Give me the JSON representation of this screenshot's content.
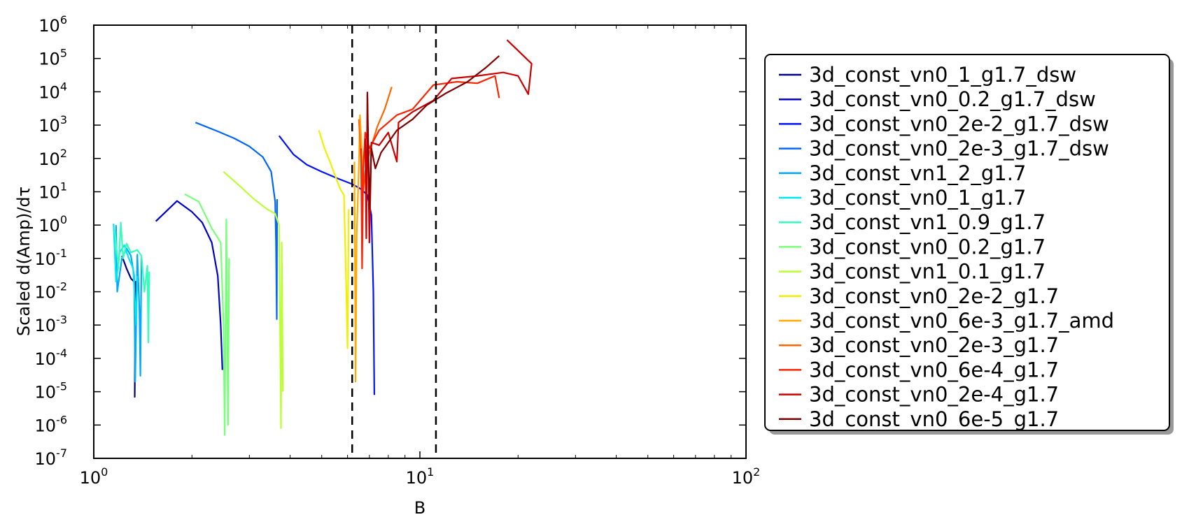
{
  "chart_data": {
    "type": "line",
    "title": "",
    "xlabel": "B",
    "ylabel": "Scaled d(Amp)/dτ",
    "xscale": "log",
    "yscale": "log",
    "xlim": [
      1,
      100
    ],
    "ylim": [
      1e-07,
      1000000.0
    ],
    "x_ticks": [
      {
        "value": 1,
        "base": "10",
        "exp": "0"
      },
      {
        "value": 10,
        "base": "10",
        "exp": "1"
      },
      {
        "value": 100,
        "base": "10",
        "exp": "2"
      }
    ],
    "y_ticks": [
      {
        "value": 1000000.0,
        "base": "10",
        "exp": "6"
      },
      {
        "value": 100000.0,
        "base": "10",
        "exp": "5"
      },
      {
        "value": 10000.0,
        "base": "10",
        "exp": "4"
      },
      {
        "value": 1000.0,
        "base": "10",
        "exp": "3"
      },
      {
        "value": 100.0,
        "base": "10",
        "exp": "2"
      },
      {
        "value": 10.0,
        "base": "10",
        "exp": "1"
      },
      {
        "value": 1.0,
        "base": "10",
        "exp": "0"
      },
      {
        "value": 0.1,
        "base": "10",
        "exp": "-1"
      },
      {
        "value": 0.01,
        "base": "10",
        "exp": "-2"
      },
      {
        "value": 0.001,
        "base": "10",
        "exp": "-3"
      },
      {
        "value": 0.0001,
        "base": "10",
        "exp": "-4"
      },
      {
        "value": 1e-05,
        "base": "10",
        "exp": "-5"
      },
      {
        "value": 1e-06,
        "base": "10",
        "exp": "-6"
      },
      {
        "value": 1e-07,
        "base": "10",
        "exp": "-7"
      }
    ],
    "vlines": [
      6.2,
      11.2
    ],
    "grid": false,
    "legend_position": "outside-right",
    "series": [
      {
        "name": "3d_const_vn0_1_g1.7_dsw",
        "color": "#00007f",
        "points": [
          [
            1.22,
            0.12
          ],
          [
            1.26,
            0.05
          ],
          [
            1.3,
            0.025
          ],
          [
            1.33,
            0.02
          ],
          [
            1.34,
            0.004
          ],
          [
            1.335,
            7e-06
          ],
          [
            1.345,
            0.02
          ],
          [
            1.35,
            0.001
          ]
        ]
      },
      {
        "name": "3d_const_vn0_0.2_g1.7_dsw",
        "color": "#0000cc",
        "points": [
          [
            1.55,
            1.3
          ],
          [
            1.8,
            5.3
          ],
          [
            2.0,
            2.5
          ],
          [
            2.15,
            1.2
          ],
          [
            2.3,
            0.3
          ],
          [
            2.4,
            0.03
          ],
          [
            2.45,
            0.001
          ],
          [
            2.48,
            4.5e-05
          ]
        ]
      },
      {
        "name": "3d_const_vn0_2e-2_g1.7_dsw",
        "color": "#0011ff",
        "points": [
          [
            3.7,
            480
          ],
          [
            4.1,
            130
          ],
          [
            4.5,
            65
          ],
          [
            5.0,
            40
          ],
          [
            5.6,
            25
          ],
          [
            6.2,
            17
          ],
          [
            6.6,
            12
          ],
          [
            6.9,
            8
          ],
          [
            7.1,
            2
          ],
          [
            7.2,
            0.01
          ],
          [
            7.25,
            8e-06
          ]
        ]
      },
      {
        "name": "3d_const_vn0_2e-3_g1.7_dsw",
        "color": "#0066ff",
        "points": [
          [
            2.05,
            1200
          ],
          [
            2.4,
            650
          ],
          [
            2.7,
            400
          ],
          [
            3.0,
            230
          ],
          [
            3.3,
            110
          ],
          [
            3.5,
            40
          ],
          [
            3.6,
            5
          ],
          [
            3.62,
            0.3
          ],
          [
            3.64,
            0.0015
          ],
          [
            3.65,
            6
          ]
        ]
      },
      {
        "name": "3d_const_vn1_2_g1.7",
        "color": "#00aaff",
        "points": [
          [
            1.17,
            1.0
          ],
          [
            1.18,
            0.01
          ],
          [
            1.22,
            0.1
          ],
          [
            1.26,
            0.2
          ],
          [
            1.3,
            0.12
          ],
          [
            1.33,
            0.03
          ],
          [
            1.34,
            2e-05
          ],
          [
            1.36,
            0.13
          ],
          [
            1.38,
            0.003
          ],
          [
            1.39,
            3e-05
          ],
          [
            1.4,
            0.1
          ]
        ]
      },
      {
        "name": "3d_const_vn0_1_g1.7",
        "color": "#00e5f0",
        "points": [
          [
            1.15,
            1.1
          ],
          [
            1.17,
            0.02
          ],
          [
            1.2,
            0.15
          ],
          [
            1.24,
            0.25
          ],
          [
            1.28,
            0.1
          ],
          [
            1.32,
            0.05
          ],
          [
            1.35,
            0.001
          ],
          [
            1.36,
            0.03
          ]
        ]
      },
      {
        "name": "3d_const_vn1_0.9_g1.7",
        "color": "#33ffbb",
        "points": [
          [
            1.16,
            0.7
          ],
          [
            1.19,
            0.05
          ],
          [
            1.21,
            1.2
          ],
          [
            1.23,
            0.1
          ],
          [
            1.26,
            0.28
          ],
          [
            1.3,
            0.15
          ],
          [
            1.36,
            0.18
          ],
          [
            1.4,
            0.12
          ],
          [
            1.43,
            0.01
          ],
          [
            1.46,
            0.06
          ],
          [
            1.47,
            0.0003
          ],
          [
            1.48,
            0.04
          ]
        ]
      },
      {
        "name": "3d_const_vn0_0.2_g1.7",
        "color": "#77ff77",
        "points": [
          [
            1.9,
            8.5
          ],
          [
            2.1,
            5
          ],
          [
            2.3,
            0.8
          ],
          [
            2.45,
            0.3
          ],
          [
            2.5,
            0.001
          ],
          [
            2.52,
            5e-07
          ],
          [
            2.55,
            1.5
          ],
          [
            2.58,
            1e-06
          ],
          [
            2.6,
            0.1
          ]
        ]
      },
      {
        "name": "3d_const_vn1_0.1_g1.7",
        "color": "#bbff33",
        "points": [
          [
            2.5,
            40
          ],
          [
            2.8,
            15
          ],
          [
            3.1,
            6
          ],
          [
            3.4,
            3
          ],
          [
            3.6,
            2.2
          ],
          [
            3.7,
            1
          ],
          [
            3.75,
            8e-07
          ],
          [
            3.77,
            0.3
          ],
          [
            3.8,
            1e-05
          ]
        ]
      },
      {
        "name": "3d_const_vn0_2e-2_g1.7",
        "color": "#f0f000",
        "points": [
          [
            4.9,
            700
          ],
          [
            5.1,
            200
          ],
          [
            5.3,
            80
          ],
          [
            5.5,
            30
          ],
          [
            5.7,
            12
          ],
          [
            5.85,
            8
          ],
          [
            5.95,
            0.01
          ],
          [
            6.0,
            0.0002
          ],
          [
            6.05,
            3
          ]
        ]
      },
      {
        "name": "3d_const_vn0_6e-3_g1.7_amd",
        "color": "#ffaa00",
        "points": [
          [
            6.3,
            80
          ],
          [
            6.35,
            2e-05
          ],
          [
            6.4,
            0.5
          ],
          [
            6.5,
            60
          ],
          [
            6.55,
            2000
          ],
          [
            6.6,
            500
          ],
          [
            6.7,
            30
          ]
        ]
      },
      {
        "name": "3d_const_vn0_2e-3_g1.7",
        "color": "#ff6600",
        "points": [
          [
            6.5,
            1500
          ],
          [
            6.6,
            100
          ],
          [
            6.7,
            10
          ],
          [
            6.8,
            40
          ],
          [
            7.0,
            150
          ],
          [
            7.4,
            900
          ],
          [
            7.8,
            3000
          ],
          [
            8.2,
            14000
          ]
        ]
      },
      {
        "name": "3d_const_vn0_6e-4_g1.7",
        "color": "#ff2200",
        "points": [
          [
            6.6,
            200
          ],
          [
            6.65,
            0.05
          ],
          [
            6.7,
            50
          ],
          [
            6.8,
            600
          ],
          [
            7.0,
            200
          ],
          [
            7.5,
            700
          ],
          [
            8.0,
            1200
          ],
          [
            8.5,
            2000
          ],
          [
            9.5,
            3000
          ],
          [
            11.0,
            16000
          ],
          [
            13.0,
            20000
          ],
          [
            15.0,
            18000
          ],
          [
            17.0,
            30000
          ],
          [
            17.5,
            6500
          ]
        ]
      },
      {
        "name": "3d_const_vn0_2e-4_g1.7",
        "color": "#cc0000",
        "points": [
          [
            6.8,
            400
          ],
          [
            6.85,
            0.4
          ],
          [
            6.9,
            8000
          ],
          [
            7.0,
            0.3
          ],
          [
            7.1,
            300
          ],
          [
            7.5,
            250
          ],
          [
            8.0,
            600
          ],
          [
            8.5,
            80
          ],
          [
            8.6,
            1200
          ],
          [
            9.5,
            2500
          ],
          [
            11.0,
            5500
          ],
          [
            12.5,
            25000
          ],
          [
            15.0,
            30000
          ],
          [
            18.0,
            38000
          ],
          [
            20.0,
            30000
          ],
          [
            21.5,
            8500
          ],
          [
            22.0,
            70000
          ],
          [
            18.5,
            360000
          ]
        ]
      },
      {
        "name": "3d_const_vn0_6e-5_g1.7",
        "color": "#800000",
        "points": [
          [
            6.9,
            10000
          ],
          [
            7.0,
            3
          ],
          [
            7.1,
            200
          ],
          [
            7.3,
            50
          ],
          [
            7.6,
            150
          ],
          [
            8.0,
            300
          ],
          [
            8.5,
            700
          ],
          [
            9.5,
            1500
          ],
          [
            10.5,
            4000
          ],
          [
            12.0,
            9000
          ],
          [
            14.0,
            20000
          ],
          [
            16.0,
            55000
          ],
          [
            17.5,
            120000
          ]
        ]
      }
    ]
  }
}
